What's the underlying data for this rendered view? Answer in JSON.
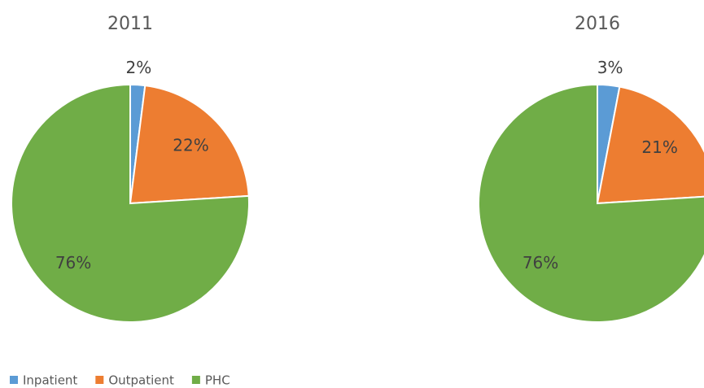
{
  "chart_data": [
    {
      "type": "pie",
      "title": "2011",
      "values": [
        2,
        22,
        76
      ],
      "value_labels": [
        "2%",
        "22%",
        "76%"
      ]
    },
    {
      "type": "pie",
      "title": "2016",
      "values": [
        3,
        21,
        76
      ],
      "value_labels": [
        "3%",
        "21%",
        "76%"
      ]
    }
  ],
  "legend": {
    "categories": [
      "Inpatient",
      "Outpatient",
      "PHC"
    ],
    "colors": [
      "#5b9bd5",
      "#ed7d31",
      "#70ad47"
    ]
  }
}
